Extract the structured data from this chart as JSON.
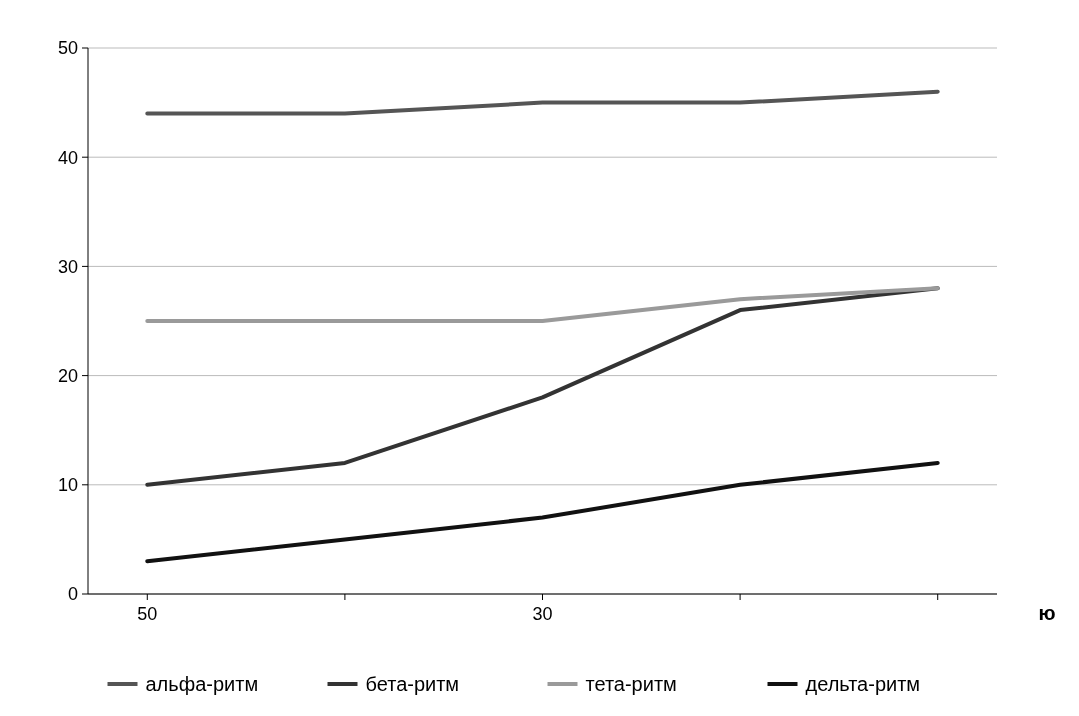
{
  "chart_data": {
    "type": "line",
    "categories": [
      "50",
      null,
      "30",
      null,
      null
    ],
    "series": [
      {
        "name": "альфа-ритм",
        "color": "#555555",
        "values": [
          44,
          44,
          45,
          45,
          46
        ]
      },
      {
        "name": "бета-ритм",
        "color": "#333333",
        "values": [
          10,
          12,
          18,
          26,
          28
        ]
      },
      {
        "name": "тета-ритм",
        "color": "#9a9a9a",
        "values": [
          25,
          25,
          25,
          27,
          28
        ]
      },
      {
        "name": "дельта-ритм",
        "color": "#111111",
        "values": [
          3,
          5,
          7,
          10,
          12
        ]
      }
    ],
    "ylim": [
      0,
      50
    ],
    "yticks": [
      0,
      10,
      20,
      30,
      40,
      50
    ],
    "grid": "y",
    "legend": "bottom",
    "marker": "none",
    "line_style": "solid",
    "annotations": [
      "ю"
    ]
  }
}
